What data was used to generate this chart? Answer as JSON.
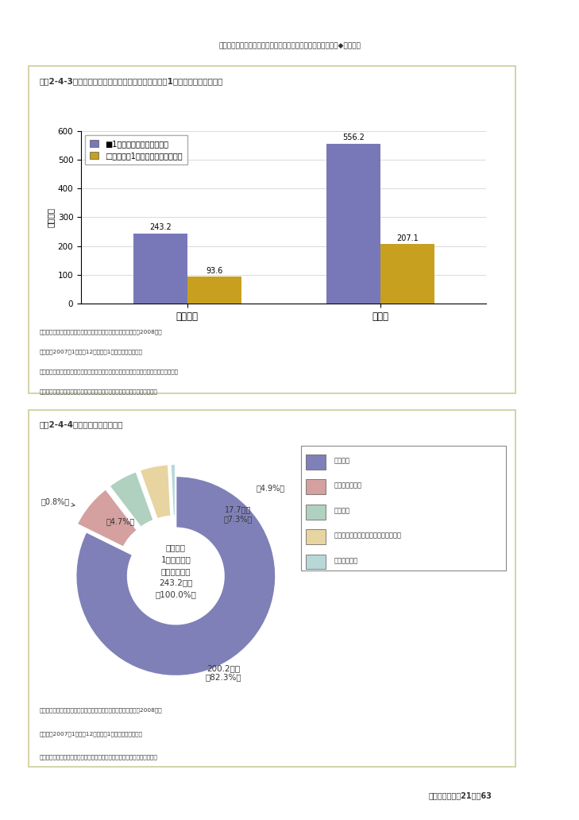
{
  "page_bg": "#ffffff",
  "top_header_text": "様々な場面における、個人の自立と社会の支援に向けた取組み◆制度改革",
  "panel_bg": "#fffff0",
  "panel_border": "#cccc99",
  "chart1_title": "図表2-4-3　１世帯当たり平均所得金額及び世帯人呔1人当たり平均所得金額",
  "chart1_ylabel": "（万円）",
  "chart1_ylim": [
    0,
    600
  ],
  "chart1_yticks": [
    0,
    100,
    200,
    300,
    400,
    500,
    600
  ],
  "chart1_categories": [
    "母子世帯",
    "全世帯"
  ],
  "chart1_series1_label": "■1世帯当たり平均所得金額",
  "chart1_series2_label": "□世帯人呔1人当たり平均所得金額",
  "chart1_series1_values": [
    243.2,
    556.2
  ],
  "chart1_series2_values": [
    93.6,
    207.1
  ],
  "chart1_color1": "#7878b8",
  "chart1_color2": "#c8a020",
  "chart1_note1": "資料：厕生労働省大臣官房統計情報部「国民生活基礎調査」　（2008年）",
  "chart1_note2": "（注１）2007年1月から12月までの1年間の所得である。",
  "chart1_note3": "（注２）「全世帯」とは、「母子世帯」及び「高齢者世帯」を含む全世帯の数値である。",
  "chart1_note4": "（注３）「母子世帯」は客体が少ないため、数値の使用には注意を要する。",
  "chart2_title": "図表2-4-4　母子世帯の所得構成",
  "chart2_center_line1": "母子世帯",
  "chart2_center_line2": "1世帯当たり",
  "chart2_center_line3": "平均所得金額",
  "chart2_center_line4": "243.2万円",
  "chart2_center_line5": "（100.0%）",
  "chart2_sizes": [
    82.3,
    7.3,
    4.9,
    4.7,
    0.8
  ],
  "chart2_label_main": "200.2万円",
  "chart2_label_main_pct": "（82.3%）",
  "chart2_label2a": "17.7万円",
  "chart2_label2b": "（7.3%）",
  "chart2_label3": "（4.9%）",
  "chart2_label4": "（4.7%）",
  "chart2_label5": "（0.8%）",
  "chart2_colors": [
    "#8080b8",
    "#d4a0a0",
    "#b0d0c0",
    "#e8d4a0",
    "#b8d8d8"
  ],
  "chart2_legend_labels": [
    "勤労所得",
    "公的年金・恩給",
    "財産所得",
    "公的年金・恩給以外の社会保隚給付金",
    "その他の所得"
  ],
  "chart2_note1": "資料：厕生労働省大臣官房統計情報部「国民生活基礎調査」　（2008年）",
  "chart2_note2": "（注１）2007年1月から12月までの1年間の所得である。",
  "chart2_note3": "（注２）「母子世帯」は客体が少ないため、数値の使用には注意を要する。",
  "sidebar_color1": "#5bc8d8",
  "sidebar_color2": "#88b868",
  "footer_text": "厕生労働白書〡21　〃63"
}
